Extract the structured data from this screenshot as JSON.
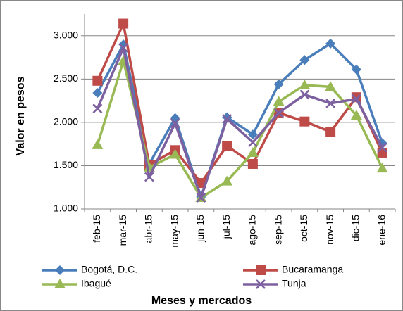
{
  "chart_data": {
    "type": "line",
    "x_label": "Meses y mercados",
    "y_label": "Valor en pesos",
    "categories": [
      "feb-15",
      "mar-15",
      "abr-15",
      "may-15",
      "jun-15",
      "jul-15",
      "ago-15",
      "sep-15",
      "oct-15",
      "nov-15",
      "dic-15",
      "ene-16"
    ],
    "series": [
      {
        "name": "Bogotá, D.C.",
        "color": "#4a7ebb",
        "marker": "diamond",
        "values": [
          2340,
          2900,
          1520,
          2050,
          1140,
          2060,
          1860,
          2440,
          2720,
          2910,
          2610,
          1760
        ]
      },
      {
        "name": "Bucaramanga",
        "color": "#be4b48",
        "marker": "square",
        "values": [
          2480,
          3140,
          1510,
          1680,
          1300,
          1730,
          1520,
          2110,
          2010,
          1890,
          2290,
          1650
        ]
      },
      {
        "name": "Ibagué",
        "color": "#98b954",
        "marker": "triangle",
        "values": [
          1740,
          2710,
          1480,
          1630,
          1130,
          1320,
          1650,
          2240,
          2430,
          2410,
          2080,
          1470
        ]
      },
      {
        "name": "Tunja",
        "color": "#7d60a0",
        "marker": "x",
        "values": [
          2160,
          2860,
          1370,
          1990,
          1130,
          2040,
          1770,
          2110,
          2320,
          2220,
          2270,
          1710
        ]
      }
    ],
    "ylim": [
      1000,
      3250
    ],
    "yticks": [
      {
        "value": 1000,
        "label": "1.000"
      },
      {
        "value": 1500,
        "label": "1.500"
      },
      {
        "value": 2000,
        "label": "2.000"
      },
      {
        "value": 2500,
        "label": "2.500"
      },
      {
        "value": 3000,
        "label": "3.000"
      }
    ],
    "grid": true
  }
}
